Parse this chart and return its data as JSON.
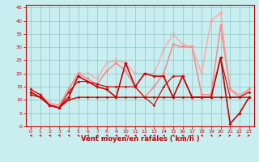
{
  "title": "",
  "xlabel": "Vent moyen/en rafales ( km/h )",
  "ylabel": "",
  "xlim": [
    -0.5,
    23.5
  ],
  "ylim": [
    0,
    46
  ],
  "yticks": [
    0,
    5,
    10,
    15,
    20,
    25,
    30,
    35,
    40,
    45
  ],
  "xticks": [
    0,
    1,
    2,
    3,
    4,
    5,
    6,
    7,
    8,
    9,
    10,
    11,
    12,
    13,
    14,
    15,
    16,
    17,
    18,
    19,
    20,
    21,
    22,
    23
  ],
  "bg_color": "#c8eef0",
  "grid_color": "#99cccc",
  "series": [
    {
      "x": [
        0,
        1,
        2,
        3,
        4,
        5,
        6,
        7,
        8,
        9,
        10,
        11,
        12,
        13,
        14,
        15,
        16,
        17,
        18,
        19,
        20,
        21,
        22,
        23
      ],
      "y": [
        13,
        11,
        8,
        7,
        11,
        19,
        17,
        15,
        14,
        11,
        24,
        15,
        20,
        19,
        19,
        11,
        19,
        11,
        11,
        11,
        26,
        1,
        5,
        11
      ],
      "color": "#cc0000",
      "lw": 1.2,
      "marker": "D",
      "ms": 1.8,
      "zorder": 5
    },
    {
      "x": [
        0,
        1,
        2,
        3,
        4,
        5,
        6,
        7,
        8,
        9,
        10,
        11,
        12,
        13,
        14,
        15,
        16,
        17,
        18,
        19,
        20,
        21,
        22,
        23
      ],
      "y": [
        12,
        11,
        8,
        7,
        10,
        11,
        11,
        11,
        11,
        11,
        11,
        11,
        11,
        11,
        11,
        11,
        11,
        11,
        11,
        11,
        11,
        11,
        11,
        11
      ],
      "color": "#cc0000",
      "lw": 1.0,
      "marker": "D",
      "ms": 1.5,
      "zorder": 4
    },
    {
      "x": [
        0,
        1,
        2,
        3,
        4,
        5,
        6,
        7,
        8,
        9,
        10,
        11,
        12,
        13,
        14,
        15,
        16,
        17,
        18,
        19,
        20,
        21,
        22,
        23
      ],
      "y": [
        14,
        12,
        8,
        7,
        13,
        17,
        17,
        16,
        15,
        15,
        15,
        15,
        11,
        8,
        15,
        19,
        19,
        11,
        11,
        11,
        26,
        11,
        11,
        13
      ],
      "color": "#cc0000",
      "lw": 0.8,
      "marker": "D",
      "ms": 1.5,
      "zorder": 3
    },
    {
      "x": [
        0,
        1,
        2,
        3,
        4,
        5,
        6,
        7,
        8,
        9,
        10,
        11,
        12,
        13,
        14,
        15,
        16,
        17,
        18,
        19,
        20,
        21,
        22,
        23
      ],
      "y": [
        14,
        12,
        8,
        8,
        14,
        20,
        18,
        16,
        21,
        24,
        21,
        15,
        11,
        15,
        20,
        31,
        30,
        30,
        12,
        12,
        38,
        14,
        11,
        14
      ],
      "color": "#ff8888",
      "lw": 1.1,
      "marker": "v",
      "ms": 2.5,
      "zorder": 2
    },
    {
      "x": [
        0,
        1,
        2,
        3,
        4,
        5,
        6,
        7,
        8,
        9,
        10,
        11,
        12,
        13,
        14,
        15,
        16,
        17,
        18,
        19,
        20,
        21,
        22,
        23
      ],
      "y": [
        14,
        12,
        9,
        8,
        14,
        20,
        20,
        18,
        24,
        25,
        24,
        20,
        20,
        20,
        29,
        35,
        31,
        30,
        20,
        40,
        43,
        14,
        12,
        14
      ],
      "color": "#ffaaaa",
      "lw": 1.1,
      "marker": "v",
      "ms": 2.5,
      "zorder": 1
    }
  ],
  "xlabel_color": "#cc0000",
  "tick_color": "#cc0000",
  "axis_color": "#cc0000",
  "tick_fontsize": 4.5,
  "xlabel_fontsize": 6.0
}
